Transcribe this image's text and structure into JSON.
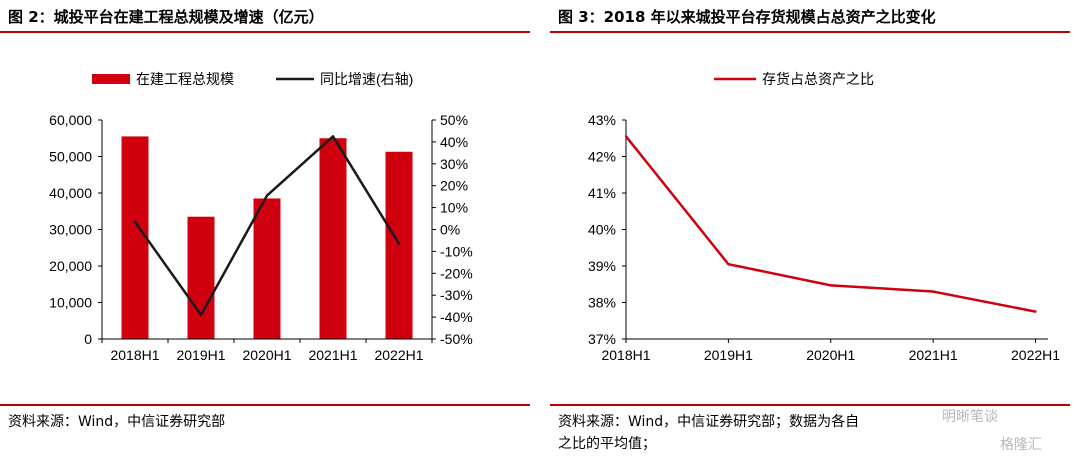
{
  "figures": [
    {
      "title": "图 2：城投平台在建工程总规模及增速（亿元）",
      "source": "资料来源：Wind，中信证券研究部"
    },
    {
      "title": "图 3：2018 年以来城投平台存货规模占总资产之比变化",
      "source_line1": "资料来源：Wind，中信证券研究部；数据为各自",
      "source_line2": "之比的平均值；"
    }
  ],
  "watermark": {
    "text1": "明晰笔谈",
    "text2": "格隆汇"
  },
  "chart_data": [
    {
      "type": "bar",
      "categories": [
        "2018H1",
        "2019H1",
        "2020H1",
        "2021H1",
        "2022H1"
      ],
      "series": [
        {
          "name": "在建工程总规模",
          "type": "bar",
          "axis": "left",
          "values": [
            55500,
            33500,
            38500,
            55000,
            51300
          ]
        },
        {
          "name": "同比增速(右轴)",
          "type": "line",
          "axis": "right",
          "values": [
            3.5,
            -39,
            15.5,
            42.5,
            -6.5
          ]
        }
      ],
      "y_left": {
        "min": 0,
        "max": 60000,
        "ticks": [
          "0",
          "10,000",
          "20,000",
          "30,000",
          "40,000",
          "50,000",
          "60,000"
        ]
      },
      "y_right": {
        "min": -50,
        "max": 50,
        "ticks": [
          "-50%",
          "-40%",
          "-30%",
          "-20%",
          "-10%",
          "0%",
          "10%",
          "20%",
          "30%",
          "40%",
          "50%"
        ]
      },
      "legend_position": "top",
      "grid": false,
      "colors": {
        "bar": "#d0000f",
        "line": "#1a1a1a"
      }
    },
    {
      "type": "line",
      "categories": [
        "2018H1",
        "2019H1",
        "2020H1",
        "2021H1",
        "2022H1"
      ],
      "series": [
        {
          "name": "存货占总资产之比",
          "values": [
            42.55,
            39.05,
            38.47,
            38.3,
            37.75
          ]
        }
      ],
      "y": {
        "min": 37,
        "max": 43,
        "ticks": [
          "37%",
          "38%",
          "39%",
          "40%",
          "41%",
          "42%",
          "43%"
        ]
      },
      "legend_position": "top",
      "grid": false,
      "colors": {
        "line": "#d0000f"
      }
    }
  ]
}
